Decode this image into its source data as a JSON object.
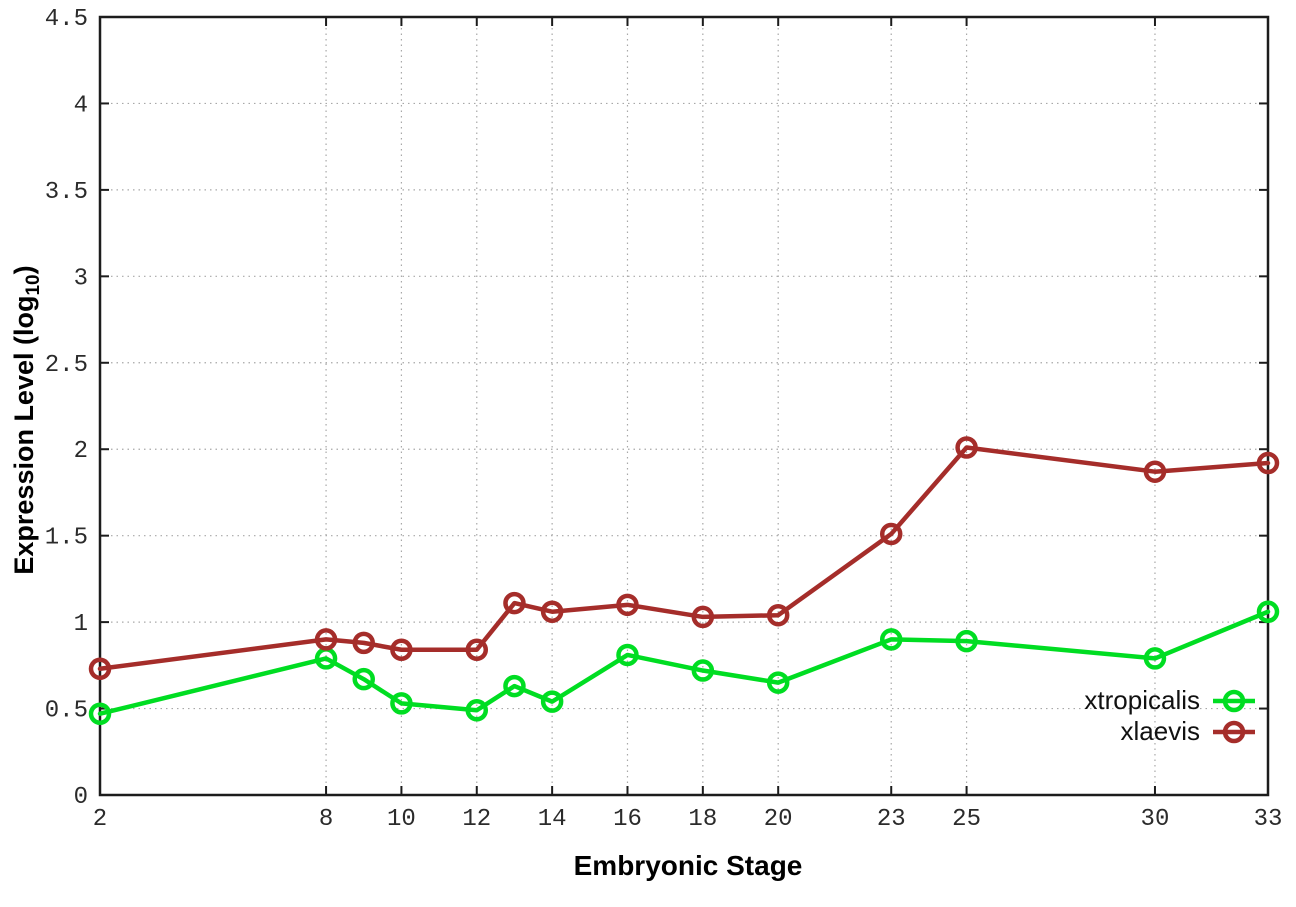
{
  "chart_data": {
    "type": "line",
    "title": "",
    "xlabel": "Embryonic Stage",
    "ylabel": "Expression Level (log10)",
    "ylabel_parts": {
      "main": "Expression Level (log",
      "sub": "10",
      "close": ")"
    },
    "x": [
      2,
      8,
      9,
      10,
      12,
      13,
      14,
      16,
      18,
      20,
      23,
      25,
      30,
      33
    ],
    "series": [
      {
        "name": "xtropicalis",
        "color": "#00dd22",
        "values": [
          0.47,
          0.79,
          0.67,
          0.53,
          0.49,
          0.63,
          0.54,
          0.81,
          0.72,
          0.65,
          0.9,
          0.89,
          0.79,
          1.06
        ]
      },
      {
        "name": "xlaevis",
        "color": "#a52d2a",
        "values": [
          0.73,
          0.9,
          0.88,
          0.84,
          0.84,
          1.11,
          1.06,
          1.1,
          1.03,
          1.04,
          1.51,
          2.01,
          1.87,
          1.92
        ]
      }
    ],
    "xlim": [
      2,
      33
    ],
    "ylim": [
      0,
      4.5
    ],
    "xticks": [
      2,
      8,
      10,
      12,
      14,
      16,
      18,
      20,
      23,
      25,
      30,
      33
    ],
    "xtick_labels": [
      "2",
      "8",
      "10",
      "12",
      "14",
      "16",
      "18",
      "20",
      "23",
      "25",
      "30",
      "33"
    ],
    "yticks": [
      0,
      0.5,
      1,
      1.5,
      2,
      2.5,
      3,
      3.5,
      4,
      4.5
    ],
    "ytick_labels": [
      "0",
      "0.5",
      "1",
      "1.5",
      "2",
      "2.5",
      "3",
      "3.5",
      "4",
      "4.5"
    ],
    "grid": true,
    "legend_position": "inside-bottom-right",
    "marker": "open-circle",
    "grid_color": "#a8a8a8",
    "border_color": "#1c1c1c"
  }
}
